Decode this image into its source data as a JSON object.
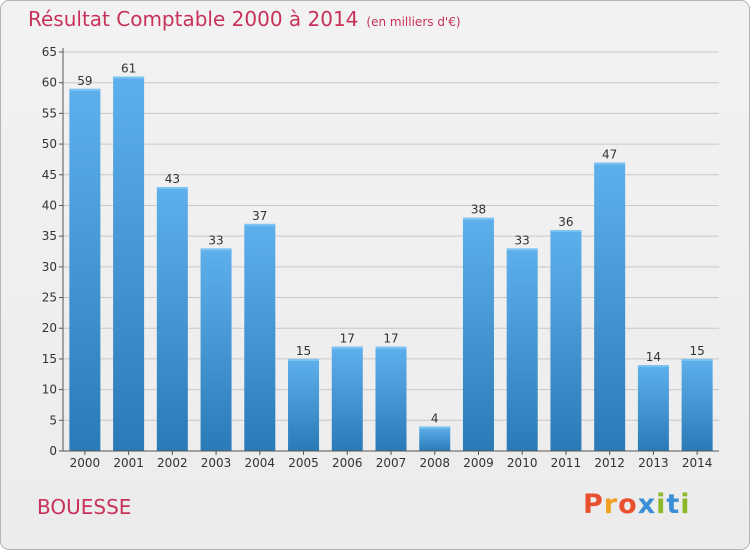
{
  "header": {
    "title": "Résultat Comptable 2000 à 2014",
    "subtitle": "(en milliers d'€)"
  },
  "footer": {
    "commune": "BOUESSE",
    "logo_text": "Proxiti"
  },
  "colors": {
    "accent": "#c8325a",
    "bar_top": "#5eb0ec",
    "bar_bottom": "#2a7ab8",
    "grid": "#c8c8c8",
    "logo": [
      "#e8502f",
      "#f0a022",
      "#e8502f",
      "#3a8fd6",
      "#8ab827",
      "#3a8fd6",
      "#8ab827"
    ]
  },
  "chart_data": {
    "type": "bar",
    "title": "Résultat Comptable 2000 à 2014",
    "subtitle": "(en milliers d'€)",
    "categories": [
      "2000",
      "2001",
      "2002",
      "2003",
      "2004",
      "2005",
      "2006",
      "2007",
      "2008",
      "2009",
      "2010",
      "2011",
      "2012",
      "2013",
      "2014"
    ],
    "values": [
      59,
      61,
      43,
      33,
      37,
      15,
      17,
      17,
      4,
      38,
      33,
      36,
      47,
      14,
      15
    ],
    "ylim": [
      0,
      65
    ],
    "yticks": [
      0,
      5,
      10,
      15,
      20,
      25,
      30,
      35,
      40,
      45,
      50,
      55,
      60,
      65
    ],
    "grid": true,
    "data_labels": true,
    "xlabel": "",
    "ylabel": ""
  }
}
